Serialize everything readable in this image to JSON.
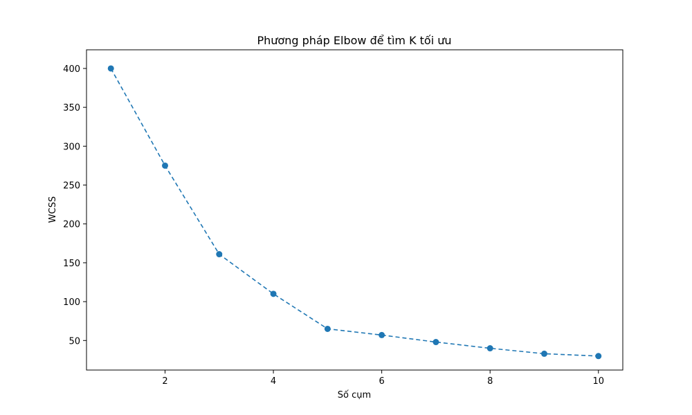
{
  "chart_data": {
    "type": "line",
    "title": "Phương pháp Elbow để tìm K tối ưu",
    "xlabel": "Số cụm",
    "ylabel": "WCSS",
    "x": [
      1,
      2,
      3,
      4,
      5,
      6,
      7,
      8,
      9,
      10
    ],
    "series": [
      {
        "values": [
          400,
          275,
          161,
          110,
          65,
          57,
          48,
          40,
          33,
          30
        ]
      }
    ],
    "xlim": [
      0.55,
      10.45
    ],
    "ylim": [
      12,
      424
    ],
    "xticks": [
      2,
      4,
      6,
      8,
      10
    ],
    "yticks": [
      50,
      100,
      150,
      200,
      250,
      300,
      350,
      400
    ],
    "line_style": "dashed",
    "marker": "circle",
    "grid": false,
    "colors": {
      "series": "#1f77b4",
      "axes": "#000000",
      "background": "#ffffff"
    }
  }
}
